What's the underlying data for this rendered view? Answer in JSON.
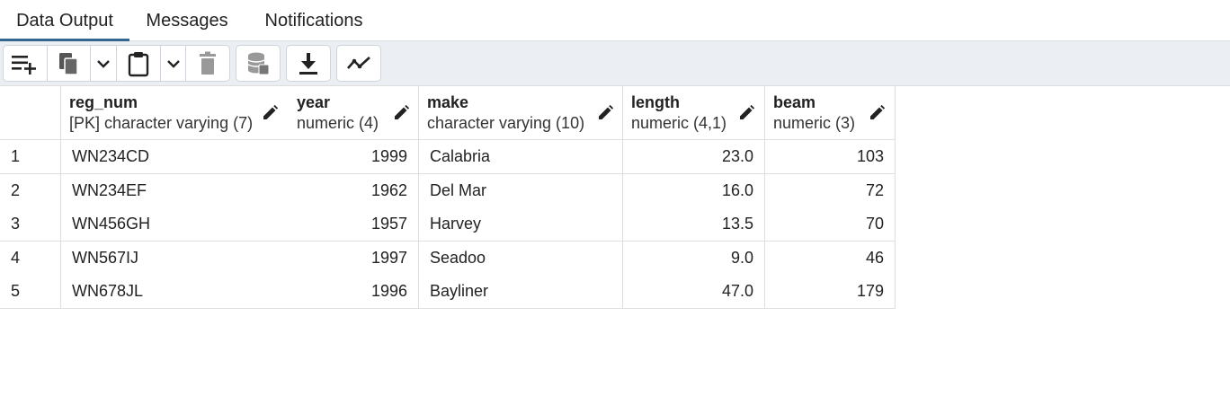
{
  "tabs": [
    {
      "label": "Data Output",
      "active": true
    },
    {
      "label": "Messages",
      "active": false
    },
    {
      "label": "Notifications",
      "active": false
    }
  ],
  "toolbar": {
    "buttons": [
      {
        "icon": "add-row-icon"
      },
      {
        "icon": "copy-icon"
      },
      {
        "icon": "chevron-down-icon"
      },
      {
        "icon": "paste-icon"
      },
      {
        "icon": "chevron-down-icon"
      },
      {
        "icon": "delete-icon"
      },
      {
        "icon": "save-data-icon"
      },
      {
        "icon": "download-icon"
      },
      {
        "icon": "graph-visualiser-icon"
      }
    ]
  },
  "grid": {
    "columns": [
      {
        "name": "reg_num",
        "type": "[PK] character varying (7)"
      },
      {
        "name": "year",
        "type": "numeric (4)"
      },
      {
        "name": "make",
        "type": "character varying (10)"
      },
      {
        "name": "length",
        "type": "numeric (4,1)"
      },
      {
        "name": "beam",
        "type": "numeric (3)"
      }
    ],
    "rows": [
      {
        "n": "1",
        "reg_num": "WN234CD",
        "year": "1999",
        "make": "Calabria",
        "length": "23.0",
        "beam": "103"
      },
      {
        "n": "2",
        "reg_num": "WN234EF",
        "year": "1962",
        "make": "Del Mar",
        "length": "16.0",
        "beam": "72"
      },
      {
        "n": "3",
        "reg_num": "WN456GH",
        "year": "1957",
        "make": "Harvey",
        "length": "13.5",
        "beam": "70"
      },
      {
        "n": "4",
        "reg_num": "WN567IJ",
        "year": "1997",
        "make": "Seadoo",
        "length": "9.0",
        "beam": "46"
      },
      {
        "n": "5",
        "reg_num": "WN678JL",
        "year": "1996",
        "make": "Bayliner",
        "length": "47.0",
        "beam": "179"
      }
    ]
  },
  "colors": {
    "active_tab": "#326690",
    "toolbar_bg": "#ebeef2",
    "grid_border": "#dedede"
  }
}
